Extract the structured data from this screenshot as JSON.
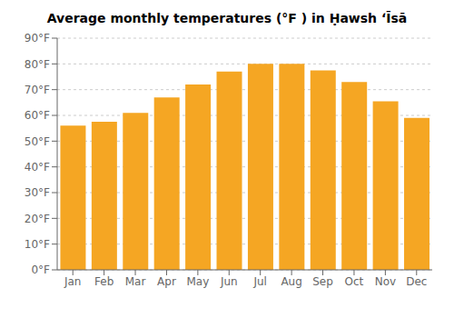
{
  "chart_data": {
    "type": "bar",
    "title": "Average monthly temperatures (°F ) in Ḥawsh ʻĪsā",
    "categories": [
      "Jan",
      "Feb",
      "Mar",
      "Apr",
      "May",
      "Jun",
      "Jul",
      "Aug",
      "Sep",
      "Oct",
      "Nov",
      "Dec"
    ],
    "values": [
      56,
      57.5,
      61,
      67,
      72,
      77,
      80,
      80,
      77.5,
      73,
      65.5,
      59
    ],
    "color": "#F5A623",
    "ylim": [
      0,
      90
    ],
    "yticks": [
      {
        "value": 0,
        "label": "0°F"
      },
      {
        "value": 10,
        "label": "10°F"
      },
      {
        "value": 20,
        "label": "20°F"
      },
      {
        "value": 30,
        "label": "30°F"
      },
      {
        "value": 40,
        "label": "40°F"
      },
      {
        "value": 50,
        "label": "50°F"
      },
      {
        "value": 60,
        "label": "60°F"
      },
      {
        "value": 70,
        "label": "70°F"
      },
      {
        "value": 80,
        "label": "80°F"
      },
      {
        "value": 90,
        "label": "90°F"
      }
    ],
    "grid": true
  }
}
